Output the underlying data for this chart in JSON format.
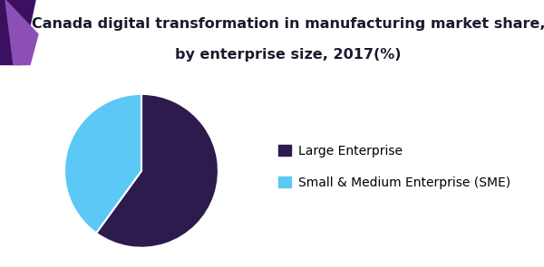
{
  "title_line1": "Canada digital transformation in manufacturing market share,",
  "title_line2": "by enterprise size, 2017(%)",
  "slices": [
    60.0,
    40.0
  ],
  "labels": [
    "Large Enterprise",
    "Small & Medium Enterprise (SME)"
  ],
  "colors": [
    "#2d1b4e",
    "#5bc8f5"
  ],
  "startangle": 90,
  "background_color": "#ffffff",
  "header_bg": "#f7f7f7",
  "title_fontsize": 11.5,
  "legend_fontsize": 10,
  "header_line_color": "#7b2d8b",
  "accent_shape_colors": [
    "#4a1a6b",
    "#7b4fa0",
    "#9b6db5"
  ],
  "pie_edge_color": "#ffffff",
  "pie_edge_width": 1.5
}
